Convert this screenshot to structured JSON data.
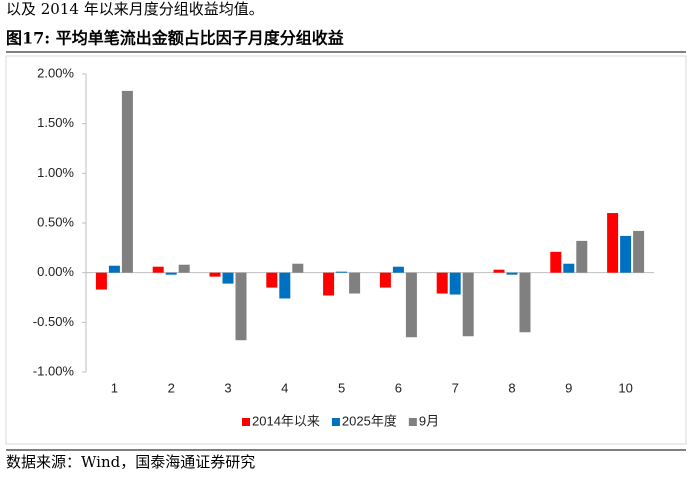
{
  "intro_text": "以及 2014 年以来月度分组收益均值。",
  "figure_title": "图17:  平均单笔流出金额占比因子月度分组收益",
  "source": "数据来源：Wind，国泰海通证券研究",
  "chart_data": {
    "type": "bar",
    "categories": [
      "1",
      "2",
      "3",
      "4",
      "5",
      "6",
      "7",
      "8",
      "9",
      "10"
    ],
    "series": [
      {
        "name": "2014年以来",
        "color": "#ff0000",
        "values": [
          -0.17,
          0.06,
          -0.04,
          -0.15,
          -0.23,
          -0.15,
          -0.21,
          0.03,
          0.21,
          0.6
        ]
      },
      {
        "name": "2025年度",
        "color": "#0070c0",
        "values": [
          0.07,
          -0.02,
          -0.11,
          -0.26,
          0.01,
          0.06,
          -0.22,
          -0.02,
          0.09,
          0.37
        ]
      },
      {
        "name": "9月",
        "color": "#808080",
        "values": [
          1.83,
          0.08,
          -0.68,
          0.09,
          -0.21,
          -0.65,
          -0.64,
          -0.6,
          0.32,
          0.42
        ]
      }
    ],
    "ylim": [
      -1,
      2
    ],
    "yticks": [
      {
        "value": -1,
        "label": "-1.00%"
      },
      {
        "value": -0.5,
        "label": "-0.50%"
      },
      {
        "value": 0,
        "label": "0.00%"
      },
      {
        "value": 0.5,
        "label": "0.50%"
      },
      {
        "value": 1,
        "label": "1.00%"
      },
      {
        "value": 1.5,
        "label": "1.50%"
      },
      {
        "value": 2,
        "label": "2.00%"
      }
    ],
    "legend": "bottom"
  }
}
